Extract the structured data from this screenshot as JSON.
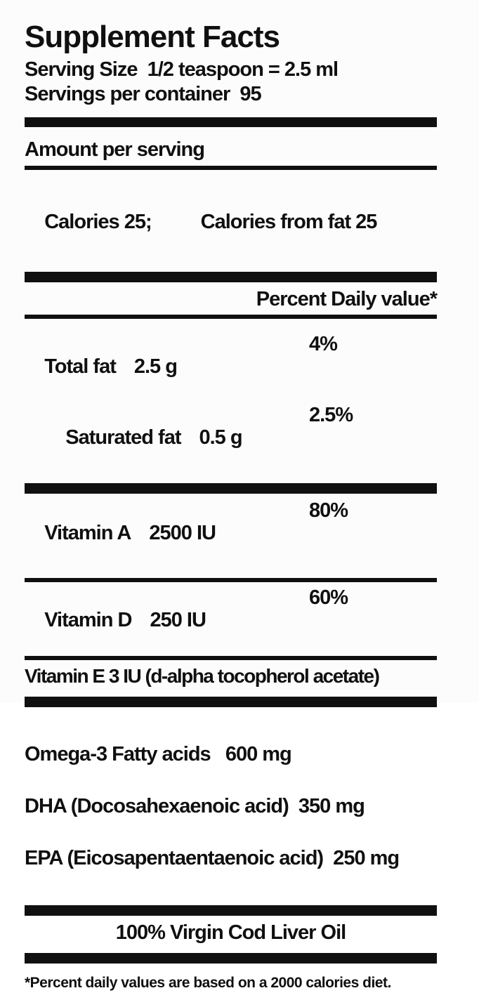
{
  "label": {
    "title": "Supplement Facts",
    "serving_size": "Serving Size  1/2 teaspoon = 2.5 ml",
    "servings_per_container": "Servings per container  95",
    "amount_per_serving": "Amount per serving",
    "calories": "Calories 25;",
    "calories_from_fat": "Calories from fat 25",
    "percent_daily_value_header": "Percent Daily value*",
    "nutrients": [
      {
        "name": "Total fat",
        "amount": "2.5 g",
        "daily_value": "4%"
      },
      {
        "name": "Saturated fat",
        "amount": "0.5 g",
        "daily_value": "2.5%"
      },
      {
        "name": "Vitamin A",
        "amount": "2500 IU",
        "daily_value": "80%"
      },
      {
        "name": "Vitamin D",
        "amount": "250 IU",
        "daily_value": "60%"
      }
    ],
    "vitamin_e": "Vitamin E 3 IU (d-alpha tocopherol acetate)",
    "other_ingredients": [
      {
        "line": "Omega-3 Fatty acids   600 mg"
      },
      {
        "line": "DHA (Docosahexaenoic acid)  350 mg"
      },
      {
        "line": "EPA (Eicosapentaentaenoic acid)  250 mg"
      }
    ],
    "source": "100% Virgin Cod Liver Oil",
    "footnote": "*Percent daily values are based on a 2000 calories diet.",
    "colors": {
      "text": "#101010",
      "background": "#fcfcfc",
      "rule": "#101010"
    }
  }
}
